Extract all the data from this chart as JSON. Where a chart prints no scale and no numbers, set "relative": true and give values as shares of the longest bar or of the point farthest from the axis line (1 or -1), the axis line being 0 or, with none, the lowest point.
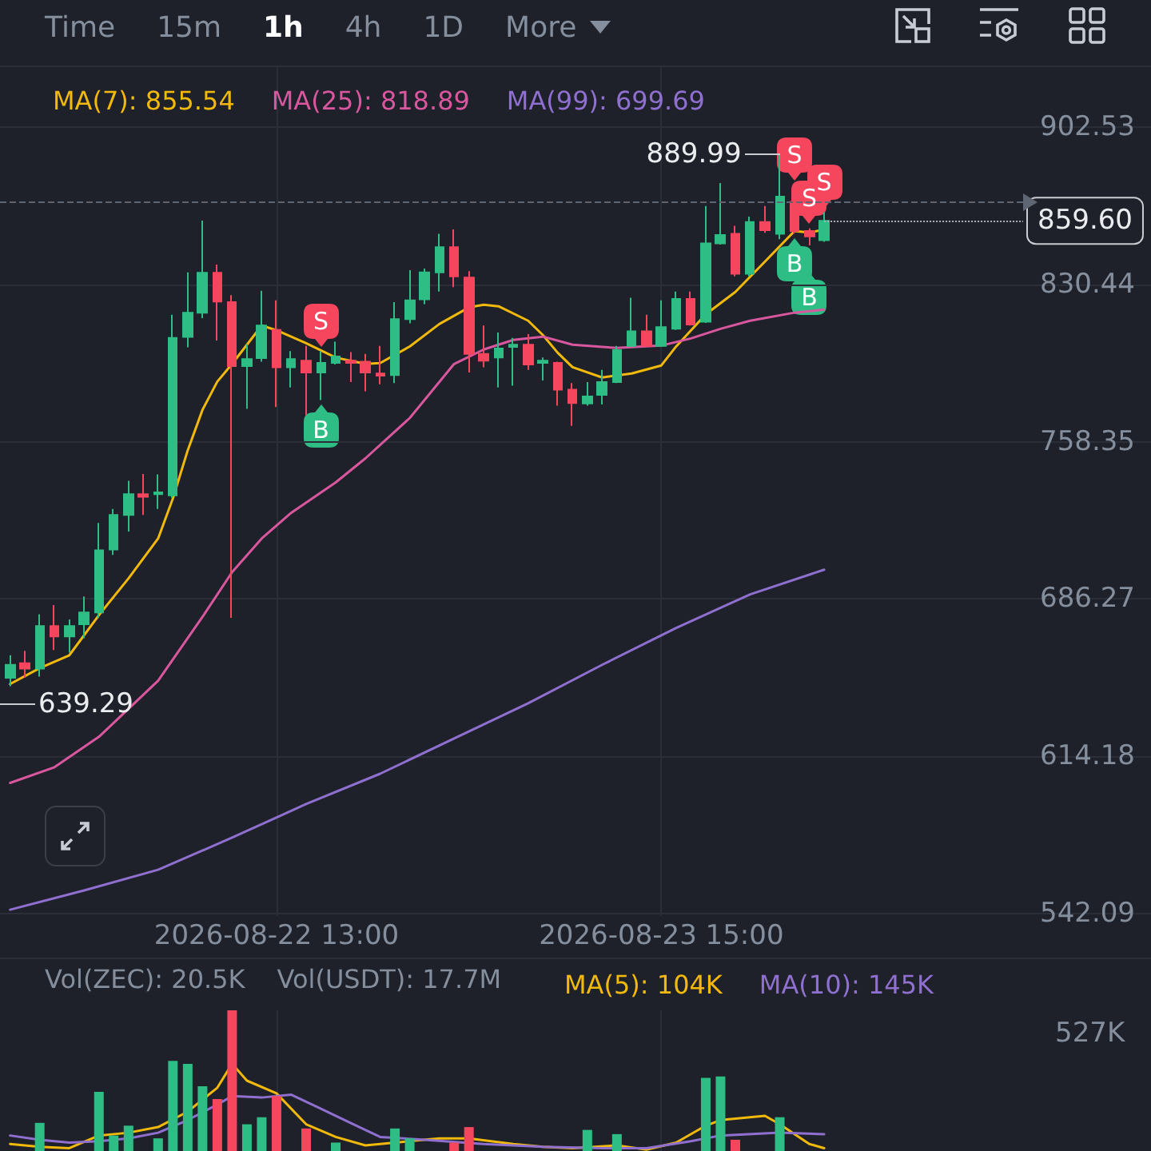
{
  "chart_data": [
    {
      "type": "candlestick",
      "x": [
        "2026-08-21T19:00",
        "2026-08-21T20:00",
        "2026-08-21T21:00",
        "2026-08-21T22:00",
        "2026-08-21T23:00",
        "2026-08-22T00:00",
        "2026-08-22T01:00",
        "2026-08-22T02:00",
        "2026-08-22T03:00",
        "2026-08-22T04:00",
        "2026-08-22T05:00",
        "2026-08-22T06:00",
        "2026-08-22T07:00",
        "2026-08-22T08:00",
        "2026-08-22T09:00",
        "2026-08-22T10:00",
        "2026-08-22T11:00",
        "2026-08-22T12:00",
        "2026-08-22T13:00",
        "2026-08-22T14:00",
        "2026-08-22T15:00",
        "2026-08-22T16:00",
        "2026-08-22T17:00",
        "2026-08-22T18:00",
        "2026-08-22T19:00",
        "2026-08-22T20:00",
        "2026-08-22T21:00",
        "2026-08-22T22:00",
        "2026-08-22T23:00",
        "2026-08-23T00:00",
        "2026-08-23T01:00",
        "2026-08-23T02:00",
        "2026-08-23T03:00",
        "2026-08-23T04:00",
        "2026-08-23T05:00",
        "2026-08-23T06:00",
        "2026-08-23T07:00",
        "2026-08-23T08:00",
        "2026-08-23T09:00",
        "2026-08-23T10:00",
        "2026-08-23T11:00",
        "2026-08-23T12:00",
        "2026-08-23T13:00",
        "2026-08-23T14:00",
        "2026-08-23T15:00",
        "2026-08-23T16:00",
        "2026-08-23T17:00",
        "2026-08-23T18:00",
        "2026-08-23T19:00",
        "2026-08-23T20:00",
        "2026-08-23T21:00",
        "2026-08-23T22:00",
        "2026-08-23T23:00",
        "2026-08-24T00:00",
        "2026-08-24T01:00",
        "2026-08-24T02:00"
      ],
      "ohlc": [
        [
          650.2,
          660.5,
          646.3,
          656.1
        ],
        [
          656.8,
          662.5,
          650.2,
          654.4
        ],
        [
          654.4,
          679.3,
          650.7,
          673.9
        ],
        [
          673.9,
          683.5,
          662.9,
          669.1
        ],
        [
          669.1,
          676.9,
          661.7,
          673.9
        ],
        [
          674.7,
          687.4,
          668.3,
          680.1
        ],
        [
          680.1,
          721.1,
          677.6,
          708.6
        ],
        [
          708.9,
          727.5,
          706.5,
          724.8
        ],
        [
          724.8,
          740.4,
          717.2,
          734.3
        ],
        [
          734.3,
          743.6,
          724.8,
          733.1
        ],
        [
          734.3,
          743.4,
          727.5,
          735.1
        ],
        [
          733.8,
          816.5,
          732.6,
          805.9
        ],
        [
          806.4,
          836.0,
          801.6,
          817.5
        ],
        [
          817.5,
          859.7,
          815.0,
          835.8
        ],
        [
          835.8,
          839.5,
          804.7,
          822.6
        ],
        [
          822.3,
          825.5,
          677.6,
          793.0
        ],
        [
          793.0,
          803.0,
          773.4,
          796.2
        ],
        [
          796.7,
          827.5,
          795.0,
          811.6
        ],
        [
          809.6,
          823.1,
          774.2,
          792.5
        ],
        [
          792.5,
          799.9,
          783.2,
          796.2
        ],
        [
          795.5,
          802.3,
          770.5,
          790.1
        ],
        [
          790.1,
          799.9,
          777.4,
          794.5
        ],
        [
          794.5,
          804.2,
          793.7,
          797.4
        ],
        [
          795.5,
          799.4,
          785.7,
          794.5
        ],
        [
          795.0,
          798.6,
          781.5,
          790.1
        ],
        [
          789.6,
          802.3,
          784.7,
          788.6
        ],
        [
          788.9,
          822.3,
          785.2,
          814.5
        ],
        [
          814.5,
          837.0,
          812.6,
          823.1
        ],
        [
          823.6,
          837.7,
          821.4,
          836.0
        ],
        [
          836.0,
          853.6,
          827.2,
          847.5
        ],
        [
          847.5,
          855.6,
          829.2,
          834.1
        ],
        [
          833.6,
          836.5,
          790.1,
          798.6
        ],
        [
          798.6,
          811.6,
          792.5,
          795.5
        ],
        [
          796.9,
          808.4,
          783.2,
          801.1
        ],
        [
          801.8,
          805.9,
          784.0,
          802.8
        ],
        [
          802.8,
          807.7,
          791.3,
          793.7
        ],
        [
          794.5,
          796.9,
          786.4,
          795.5
        ],
        [
          794.5,
          795.0,
          774.9,
          782.2
        ],
        [
          782.2,
          785.2,
          765.6,
          776.1
        ],
        [
          775.9,
          785.7,
          774.9,
          779.1
        ],
        [
          779.8,
          791.3,
          775.4,
          785.7
        ],
        [
          785.7,
          802.3,
          785.2,
          800.3
        ],
        [
          802.3,
          824.3,
          801.8,
          808.9
        ],
        [
          808.9,
          816.5,
          801.8,
          802.3
        ],
        [
          802.3,
          823.1,
          801.8,
          810.9
        ],
        [
          810.1,
          827.2,
          809.6,
          823.8
        ],
        [
          823.8,
          827.2,
          811.6,
          812.1
        ],
        [
          813.3,
          866.4,
          812.8,
          849.2
        ],
        [
          849.2,
          876.9,
          848.7,
          853.1
        ],
        [
          853.6,
          857.3,
          834.1,
          835.3
        ],
        [
          835.3,
          861.5,
          834.1,
          859.0
        ],
        [
          859.0,
          866.4,
          854.1,
          855.3
        ],
        [
          853.6,
          889.99,
          851.2,
          870.7
        ],
        [
          868.3,
          875.6,
          853.6,
          854.9
        ],
        [
          854.9,
          856.1,
          848.3,
          852.4
        ],
        [
          850.7,
          863.4,
          850.0,
          859.6
        ]
      ],
      "colors": [
        "#2ebd85",
        "#f6465d",
        "#2ebd85",
        "#f6465d",
        "#2ebd85",
        "#2ebd85",
        "#2ebd85",
        "#2ebd85",
        "#2ebd85",
        "#f6465d",
        "#2ebd85",
        "#2ebd85",
        "#2ebd85",
        "#2ebd85",
        "#f6465d",
        "#f6465d",
        "#2ebd85",
        "#2ebd85",
        "#f6465d",
        "#2ebd85",
        "#f6465d",
        "#2ebd85",
        "#2ebd85",
        "#f6465d",
        "#f6465d",
        "#f6465d",
        "#2ebd85",
        "#2ebd85",
        "#2ebd85",
        "#2ebd85",
        "#f6465d",
        "#f6465d",
        "#f6465d",
        "#2ebd85",
        "#2ebd85",
        "#f6465d",
        "#2ebd85",
        "#f6465d",
        "#f6465d",
        "#2ebd85",
        "#2ebd85",
        "#2ebd85",
        "#2ebd85",
        "#f6465d",
        "#2ebd85",
        "#2ebd85",
        "#f6465d",
        "#2ebd85",
        "#2ebd85",
        "#f6465d",
        "#2ebd85",
        "#f6465d",
        "#2ebd85",
        "#f6465d",
        "#f6465d",
        "#2ebd85"
      ],
      "series": [
        {
          "type": "line",
          "name": "MA(7): 855.54",
          "color": "#f0b90b",
          "x": [
            "2026-08-21T19:00",
            "2026-08-21T21:00",
            "2026-08-21T23:00",
            "2026-08-22T01:00",
            "2026-08-22T03:00",
            "2026-08-22T05:00",
            "2026-08-22T06:00",
            "2026-08-22T07:00",
            "2026-08-22T08:00",
            "2026-08-22T09:00",
            "2026-08-22T10:00",
            "2026-08-22T12:00",
            "2026-08-22T13:00",
            "2026-08-22T15:00",
            "2026-08-22T17:00",
            "2026-08-22T19:00",
            "2026-08-22T20:00",
            "2026-08-22T22:00",
            "2026-08-23T00:00",
            "2026-08-23T02:00",
            "2026-08-23T03:00",
            "2026-08-23T04:00",
            "2026-08-23T06:00",
            "2026-08-23T07:00",
            "2026-08-23T08:00",
            "2026-08-23T09:00",
            "2026-08-23T11:00",
            "2026-08-23T13:00",
            "2026-08-23T15:00",
            "2026-08-23T16:00",
            "2026-08-23T18:00",
            "2026-08-23T20:00",
            "2026-08-23T22:00",
            "2026-08-24T00:00",
            "2026-08-24T01:00",
            "2026-08-24T02:00"
          ],
          "values": [
            647.3,
            654.6,
            660.5,
            678.9,
            695.7,
            714.0,
            732.4,
            754.4,
            773.0,
            785.9,
            794.0,
            811.6,
            809.4,
            803.5,
            796.9,
            794.0,
            794.4,
            802.0,
            812.3,
            819.9,
            821.1,
            820.4,
            813.8,
            807.2,
            799.1,
            792.5,
            787.8,
            789.6,
            793.3,
            802.0,
            816.7,
            827.0,
            840.9,
            854.9,
            854.2,
            855.54
          ]
        },
        {
          "type": "line",
          "name": "MA(25): 818.89",
          "color": "#d9579f",
          "x": [
            "2026-08-21T19:00",
            "2026-08-21T22:00",
            "2026-08-22T01:00",
            "2026-08-22T05:00",
            "2026-08-22T08:00",
            "2026-08-22T10:00",
            "2026-08-22T12:00",
            "2026-08-22T14:00",
            "2026-08-22T17:00",
            "2026-08-22T19:00",
            "2026-08-22T22:00",
            "2026-08-23T01:00",
            "2026-08-23T03:00",
            "2026-08-23T05:00",
            "2026-08-23T07:00",
            "2026-08-23T09:00",
            "2026-08-23T12:00",
            "2026-08-23T15:00",
            "2026-08-23T17:00",
            "2026-08-23T19:00",
            "2026-08-23T21:00",
            "2026-08-24T00:00",
            "2026-08-24T02:00"
          ],
          "values": [
            602.0,
            609.2,
            623.1,
            648.8,
            678.1,
            698.6,
            714.0,
            725.8,
            739.7,
            750.7,
            769.2,
            794.0,
            800.6,
            805.0,
            806.5,
            802.8,
            801.3,
            802.4,
            805.7,
            810.1,
            813.8,
            817.5,
            818.89
          ]
        },
        {
          "type": "line",
          "name": "MA(99): 699.69",
          "color": "#8f6fcf",
          "x": [
            "2026-08-21T19:00",
            "2026-08-22T00:00",
            "2026-08-22T05:00",
            "2026-08-22T10:00",
            "2026-08-22T15:00",
            "2026-08-22T20:00",
            "2026-08-23T01:00",
            "2026-08-23T06:00",
            "2026-08-23T11:00",
            "2026-08-23T16:00",
            "2026-08-23T21:00",
            "2026-08-24T02:00"
          ],
          "values": [
            543.9,
            552.7,
            562.2,
            576.9,
            592.3,
            606.2,
            622.4,
            638.5,
            656.1,
            673.0,
            688.4,
            699.69
          ]
        }
      ],
      "xlim": [
        "2026-08-21T18:19",
        "2026-08-25T00:05"
      ],
      "xticks": [
        {
          "value": "2026-08-22T13:00",
          "label": "2026-08-22 13:00"
        },
        {
          "value": "2026-08-23T15:00",
          "label": "2026-08-23 15:00"
        }
      ],
      "ylim": [
        541,
        930
      ],
      "yticks": [
        542.09,
        614.18,
        686.27,
        758.35,
        830.44,
        902.53
      ],
      "grid": true,
      "legend": "top left",
      "ref_lines": [
        {
          "axis": "y",
          "value": 868.3,
          "line_style": "dashed",
          "color": "#5e6673"
        },
        {
          "axis": "y",
          "value": 859.6,
          "label": "859.60",
          "line_style": "dotted",
          "color": "#aeb4bc"
        }
      ],
      "annotations": [
        "Time",
        "15m",
        "1h",
        "4h",
        "1D",
        "More",
        {
          "text": "889.99",
          "x": "2026-08-23T23:00",
          "y": 889.99
        },
        "639.29",
        {
          "text": "S",
          "x": "2026-08-22T16:00",
          "y": 799.9
        },
        {
          "text": "B",
          "x": "2026-08-22T16:00",
          "y": 777.4
        },
        {
          "text": "S",
          "x": "2026-08-24T00:00",
          "y": 875.6
        },
        {
          "text": "S",
          "x": "2026-08-24T02:00",
          "y": 863.4
        },
        {
          "text": "S",
          "x": "2026-08-24T01:00",
          "y": 856.1
        },
        {
          "text": "B",
          "x": "2026-08-24T00:00",
          "y": 853.6
        },
        {
          "text": "B",
          "x": "2026-08-24T01:00",
          "y": 848.3
        }
      ]
    },
    {
      "type": "bar",
      "relative": true,
      "x": [
        "2026-08-21T21:00",
        "2026-08-21T22:00",
        "2026-08-21T23:00",
        "2026-08-22T00:00",
        "2026-08-22T01:00",
        "2026-08-22T02:00",
        "2026-08-22T03:00",
        "2026-08-22T04:00",
        "2026-08-22T05:00",
        "2026-08-22T06:00",
        "2026-08-22T07:00",
        "2026-08-22T08:00",
        "2026-08-22T09:00",
        "2026-08-22T10:00",
        "2026-08-22T11:00",
        "2026-08-22T12:00",
        "2026-08-22T13:00",
        "2026-08-22T14:00",
        "2026-08-22T15:00",
        "2026-08-22T16:00",
        "2026-08-22T17:00",
        "2026-08-22T18:00",
        "2026-08-22T19:00",
        "2026-08-22T20:00",
        "2026-08-22T21:00",
        "2026-08-22T22:00",
        "2026-08-22T23:00",
        "2026-08-23T00:00",
        "2026-08-23T01:00",
        "2026-08-23T02:00",
        "2026-08-23T03:00",
        "2026-08-23T04:00",
        "2026-08-23T05:00",
        "2026-08-23T06:00",
        "2026-08-23T07:00",
        "2026-08-23T08:00",
        "2026-08-23T09:00",
        "2026-08-23T10:00",
        "2026-08-23T11:00",
        "2026-08-23T12:00",
        "2026-08-23T13:00",
        "2026-08-23T14:00",
        "2026-08-23T15:00",
        "2026-08-23T16:00",
        "2026-08-23T17:00",
        "2026-08-23T18:00",
        "2026-08-23T19:00",
        "2026-08-23T20:00",
        "2026-08-23T21:00",
        "2026-08-23T22:00",
        "2026-08-23T23:00"
      ],
      "series": [
        {
          "colors": [
            "#2ebd85",
            "#f6465d",
            "#2ebd85",
            "#2ebd85",
            "#2ebd85",
            "#2ebd85",
            "#2ebd85",
            "#f6465d",
            "#2ebd85",
            "#2ebd85",
            "#2ebd85",
            "#2ebd85",
            "#f6465d",
            "#f6465d",
            "#2ebd85",
            "#2ebd85",
            "#f6465d",
            "#2ebd85",
            "#f6465d",
            "#2ebd85",
            "#2ebd85",
            "#f6465d",
            "#f6465d",
            "#f6465d",
            "#2ebd85",
            "#2ebd85",
            "#2ebd85",
            "#2ebd85",
            "#f6465d",
            "#f6465d",
            "#f6465d",
            "#2ebd85",
            "#2ebd85",
            "#f6465d",
            "#2ebd85",
            "#f6465d",
            "#f6465d",
            "#2ebd85",
            "#2ebd85",
            "#2ebd85",
            "#2ebd85",
            "#f6465d",
            "#2ebd85",
            "#2ebd85",
            "#f6465d",
            "#2ebd85",
            "#2ebd85",
            "#f6465d",
            "#2ebd85",
            "#f6465d",
            "#2ebd85"
          ],
          "values": [
            0.2,
            null,
            null,
            null,
            0.42,
            0.11,
            0.18,
            null,
            0.09,
            0.64,
            0.62,
            0.46,
            0.37,
            1,
            0.19,
            0.24,
            0.39,
            null,
            0.16,
            null,
            0.06,
            null,
            null,
            null,
            0.16,
            0.09,
            null,
            null,
            0.06,
            0.17,
            null,
            null,
            null,
            null,
            null,
            null,
            null,
            0.15,
            null,
            0.12,
            null,
            null,
            null,
            null,
            null,
            0.52,
            0.53,
            0.08,
            null,
            null,
            0.24
          ]
        },
        {
          "type": "line",
          "name": "MA(5): 104K",
          "color": "#f0b90b",
          "x": [
            "2026-08-21T19:00",
            "2026-08-21T21:00",
            "2026-08-21T23:00",
            "2026-08-22T01:00",
            "2026-08-22T03:00",
            "2026-08-22T05:00",
            "2026-08-22T07:00",
            "2026-08-22T09:00",
            "2026-08-22T10:00",
            "2026-08-22T11:00",
            "2026-08-22T13:00",
            "2026-08-22T15:00",
            "2026-08-22T17:00",
            "2026-08-22T19:00",
            "2026-08-22T21:00",
            "2026-08-23T00:00",
            "2026-08-23T02:00",
            "2026-08-23T05:00",
            "2026-08-23T07:00",
            "2026-08-23T09:00",
            "2026-08-23T12:00",
            "2026-08-23T14:00",
            "2026-08-23T16:00",
            "2026-08-23T18:00",
            "2026-08-23T19:00",
            "2026-08-23T22:00",
            "2026-08-23T23:00",
            "2026-08-24T01:00",
            "2026-08-24T02:00"
          ],
          "values": [
            0.05,
            0.03,
            0.02,
            0.11,
            0.13,
            0.17,
            0.28,
            0.45,
            0.62,
            0.5,
            0.41,
            0.19,
            0.1,
            0.04,
            0.06,
            0.09,
            0.09,
            0.05,
            0.03,
            0.02,
            0.04,
            0.01,
            0.06,
            0.18,
            0.22,
            0.25,
            0.19,
            0.05,
            0.02
          ]
        },
        {
          "type": "line",
          "name": "MA(10): 145K",
          "color": "#8f6fcf",
          "x": [
            "2026-08-21T19:00",
            "2026-08-21T21:00",
            "2026-08-21T23:00",
            "2026-08-22T01:00",
            "2026-08-22T03:00",
            "2026-08-22T05:00",
            "2026-08-22T07:00",
            "2026-08-22T09:00",
            "2026-08-22T10:00",
            "2026-08-22T12:00",
            "2026-08-22T14:00",
            "2026-08-22T16:00",
            "2026-08-22T18:00",
            "2026-08-22T20:00",
            "2026-08-22T23:00",
            "2026-08-23T03:00",
            "2026-08-23T07:00",
            "2026-08-23T11:00",
            "2026-08-23T14:00",
            "2026-08-23T17:00",
            "2026-08-23T19:00",
            "2026-08-23T23:00",
            "2026-08-24T02:00"
          ],
          "values": [
            0.11,
            0.08,
            0.06,
            0.07,
            0.09,
            0.13,
            0.22,
            0.33,
            0.39,
            0.38,
            0.4,
            0.3,
            0.2,
            0.1,
            0.08,
            0.05,
            0.03,
            0.02,
            0.02,
            0.07,
            0.11,
            0.13,
            0.12
          ]
        }
      ],
      "xlim": [
        "2026-08-21T18:19",
        "2026-08-25T00:05"
      ],
      "xticks": [
        {
          "value": "2026-08-22T13:00",
          "label": null
        },
        {
          "value": "2026-08-23T15:00",
          "label": null
        }
      ],
      "tick_labels": false,
      "grid": "x",
      "legend": "top right",
      "annotations": [
        "Vol(ZEC): 20.5K",
        "Vol(USDT): 17.7M",
        "527K"
      ]
    }
  ]
}
